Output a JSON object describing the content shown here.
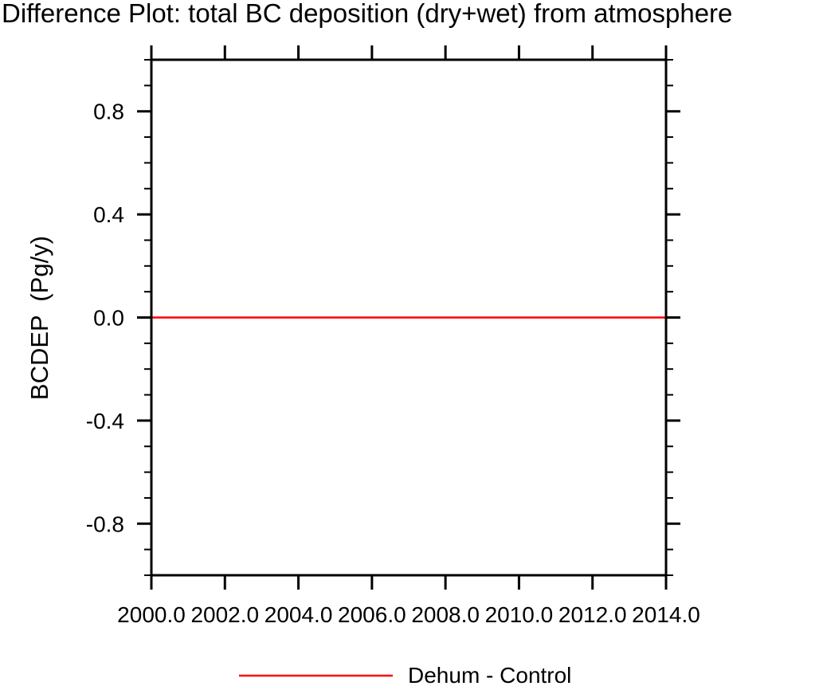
{
  "chart_data": {
    "type": "line",
    "title": "Difference Plot: total BC deposition (dry+wet) from atmosphere",
    "xlabel": "",
    "ylabel": "BCDEP  (Pg/y)",
    "xlim": [
      2000.0,
      2014.0
    ],
    "ylim": [
      -1.0,
      1.0
    ],
    "x_ticks": [
      2000.0,
      2002.0,
      2004.0,
      2006.0,
      2008.0,
      2010.0,
      2012.0,
      2014.0
    ],
    "x_tick_labels": [
      "2000.0",
      "2002.0",
      "2004.0",
      "2006.0",
      "2008.0",
      "2010.0",
      "2012.0",
      "2014.0"
    ],
    "y_ticks": [
      0.8,
      0.4,
      0.0,
      -0.4,
      -0.8
    ],
    "y_tick_labels": [
      "0.8",
      "0.4",
      "0.0",
      "-0.4",
      "-0.8"
    ],
    "y_minor_tick_step": 0.1,
    "grid": false,
    "legend_position": "bottom-center",
    "series": [
      {
        "name": "Dehum - Control",
        "color": "#ff0000",
        "x": [
          2000.0,
          2014.0
        ],
        "y": [
          0.0,
          0.0
        ]
      }
    ]
  },
  "colors": {
    "axis": "#000000",
    "text": "#000000",
    "background": "#ffffff"
  },
  "legend": {
    "label": "Dehum - Control"
  }
}
